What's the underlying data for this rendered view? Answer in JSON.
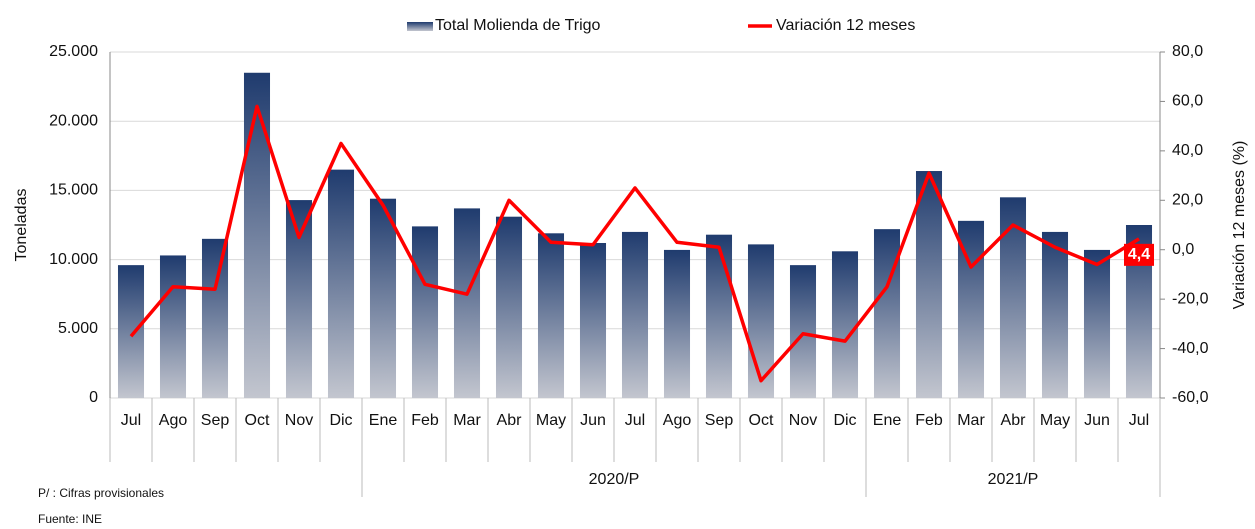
{
  "chart_data": {
    "type": "bar-line",
    "categories": [
      "Jul",
      "Ago",
      "Sep",
      "Oct",
      "Nov",
      "Dic",
      "Ene",
      "Feb",
      "Mar",
      "Abr",
      "May",
      "Jun",
      "Jul",
      "Ago",
      "Sep",
      "Oct",
      "Nov",
      "Dic",
      "Ene",
      "Feb",
      "Mar",
      "Abr",
      "May",
      "Jun",
      "Jul"
    ],
    "x_groups": [
      {
        "label": "2020/P",
        "start": 6,
        "end": 17
      },
      {
        "label": "2021/P",
        "start": 18,
        "end": 24
      }
    ],
    "series": [
      {
        "name": "Total Molienda de Trigo",
        "kind": "bar",
        "color": "#1f3b6e",
        "values": [
          9600,
          10300,
          11500,
          23500,
          14300,
          16500,
          14400,
          12400,
          13700,
          13100,
          11900,
          11200,
          12000,
          10700,
          11800,
          11100,
          9600,
          10600,
          12200,
          16400,
          12800,
          14500,
          12000,
          10700,
          12500
        ]
      },
      {
        "name": "Variación 12 meses",
        "kind": "line",
        "axis": "y2",
        "color": "#ff0000",
        "values": [
          -35,
          -15,
          -16,
          58,
          5,
          43,
          18,
          -14,
          -18,
          20,
          3,
          2,
          25,
          3,
          1,
          -53,
          -34,
          -37,
          -15,
          31,
          -7,
          10,
          1,
          -6,
          4.4
        ],
        "value_labels": [
          null,
          null,
          null,
          null,
          null,
          null,
          null,
          null,
          null,
          null,
          null,
          null,
          null,
          null,
          null,
          null,
          null,
          null,
          null,
          null,
          null,
          null,
          null,
          null,
          "4,4"
        ]
      }
    ],
    "ylabel": "Toneladas",
    "y2label": "Variación 12 meses (%)",
    "ylim": [
      0,
      25000
    ],
    "yticks": [
      0,
      {
        "value": 5000,
        "label": "5.000"
      },
      {
        "value": 10000,
        "label": "10.000"
      },
      {
        "value": 15000,
        "label": "15.000"
      },
      {
        "value": 20000,
        "label": "20.000"
      },
      {
        "value": 25000,
        "label": "25.000"
      }
    ],
    "y2lim": [
      -60,
      80
    ],
    "y2ticks": [
      {
        "value": -60,
        "label": "-60,0"
      },
      {
        "value": -40,
        "label": "-40,0"
      },
      {
        "value": -20,
        "label": "-20,0"
      },
      {
        "value": 0,
        "label": "0,0"
      },
      {
        "value": 20,
        "label": "20,0"
      },
      {
        "value": 40,
        "label": "40,0"
      },
      {
        "value": 60,
        "label": "60,0"
      },
      {
        "value": 80,
        "label": "80,0"
      }
    ],
    "grid": true,
    "notes": [
      "P/ : Cifras provisionales",
      "Fuente: INE"
    ]
  }
}
